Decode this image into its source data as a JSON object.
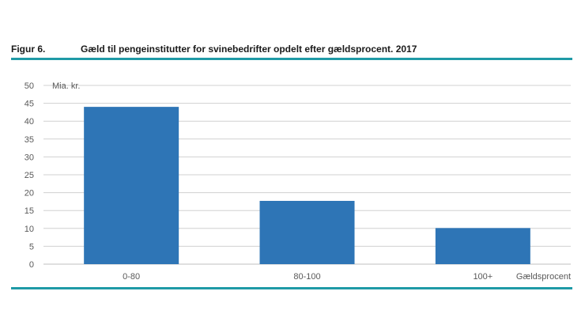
{
  "figure": {
    "number": "Figur 6.",
    "title": "Gæld til pengeinstitutter for svinebedrifter opdelt efter gældsprocent. 2017"
  },
  "colors": {
    "bar": "#2e75b6",
    "rule": "#1f9aa6",
    "grid": "#d0d0d0",
    "text": "#595959"
  },
  "chart_data": {
    "type": "bar",
    "title": "",
    "ylabel": "Mia. kr.",
    "xlabel": "Gældsprocent",
    "categories": [
      "0-80",
      "80-100",
      "100+"
    ],
    "values": [
      44,
      17.7,
      10.1
    ],
    "ylim": [
      0,
      50
    ],
    "yticks": [
      0,
      5,
      10,
      15,
      20,
      25,
      30,
      35,
      40,
      45,
      50
    ],
    "grid": true,
    "legend": "none"
  }
}
